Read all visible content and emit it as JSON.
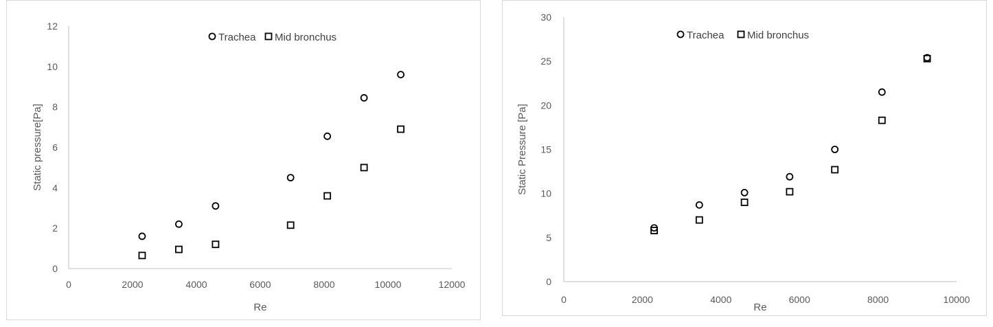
{
  "chart_data": [
    {
      "type": "scatter",
      "title": "",
      "xlabel": "Re",
      "ylabel": "Static pressure[Pa]",
      "xlim": [
        0,
        12000
      ],
      "ylim": [
        0,
        12
      ],
      "x_ticks": [
        "0",
        "2000",
        "4000",
        "6000",
        "8000",
        "10000",
        "12000"
      ],
      "y_ticks": [
        "0",
        "2",
        "4",
        "6",
        "8",
        "10",
        "12"
      ],
      "grid": false,
      "legend_position": "top",
      "series": [
        {
          "name": "Trachea",
          "marker": "circle",
          "color": "#000000",
          "x": [
            2300,
            3450,
            4600,
            6950,
            8100,
            9250,
            10400
          ],
          "y": [
            1.6,
            2.2,
            3.1,
            4.5,
            6.55,
            8.45,
            9.6
          ]
        },
        {
          "name": "Mid bronchus",
          "marker": "square",
          "color": "#000000",
          "x": [
            2300,
            3450,
            4600,
            6950,
            8100,
            9250,
            10400
          ],
          "y": [
            0.65,
            0.95,
            1.2,
            2.15,
            3.6,
            5.0,
            6.9
          ]
        }
      ]
    },
    {
      "type": "scatter",
      "title": "",
      "xlabel": "Re",
      "ylabel": "Static Pressure [Pa]",
      "xlim": [
        0,
        10000
      ],
      "ylim": [
        0,
        30
      ],
      "x_ticks": [
        "0",
        "2000",
        "4000",
        "6000",
        "8000",
        "10000"
      ],
      "y_ticks": [
        "0",
        "5",
        "10",
        "15",
        "20",
        "25",
        "30"
      ],
      "grid": false,
      "legend_position": "top",
      "series": [
        {
          "name": "Trachea",
          "marker": "circle",
          "color": "#000000",
          "x": [
            2300,
            3450,
            4600,
            5750,
            6900,
            8100,
            9250
          ],
          "y": [
            6.1,
            8.7,
            10.1,
            11.9,
            15.0,
            21.5,
            25.4
          ]
        },
        {
          "name": "Mid bronchus",
          "marker": "square",
          "color": "#000000",
          "x": [
            2300,
            3450,
            4600,
            5750,
            6900,
            8100,
            9250
          ],
          "y": [
            5.8,
            7.0,
            9.0,
            10.2,
            12.7,
            18.3,
            25.3
          ]
        }
      ]
    }
  ]
}
